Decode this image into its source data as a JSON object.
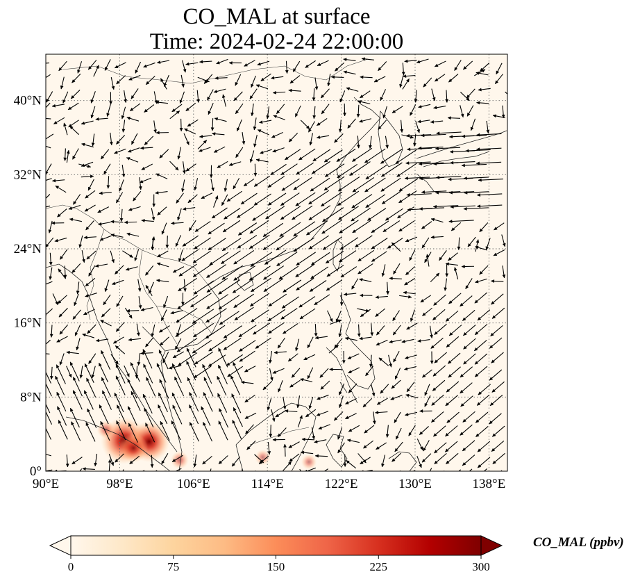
{
  "title_line1": "CO_MAL at surface",
  "title_line2": "Time: 2024-02-24 22:00:00",
  "map": {
    "lon_range": [
      90,
      140
    ],
    "lat_range": [
      0,
      45
    ],
    "lon_ticks": [
      {
        "value": 90,
        "label": "90°E"
      },
      {
        "value": 98,
        "label": "98°E"
      },
      {
        "value": 106,
        "label": "106°E"
      },
      {
        "value": 114,
        "label": "114°E"
      },
      {
        "value": 122,
        "label": "122°E"
      },
      {
        "value": 130,
        "label": "130°E"
      },
      {
        "value": 138,
        "label": "138°E"
      }
    ],
    "lat_ticks": [
      {
        "value": 0,
        "label": "0°"
      },
      {
        "value": 8,
        "label": "8°N"
      },
      {
        "value": 16,
        "label": "16°N"
      },
      {
        "value": 24,
        "label": "24°N"
      },
      {
        "value": 32,
        "label": "32°N"
      },
      {
        "value": 40,
        "label": "40°N"
      }
    ],
    "gridlines": "dotted",
    "background_color": "#fff7ec",
    "hotspots": [
      {
        "lon": 98.5,
        "lat": 3.3,
        "value": 300
      },
      {
        "lon": 101.2,
        "lat": 3.2,
        "value": 250
      },
      {
        "lon": 99.5,
        "lat": 2.5,
        "value": 150
      },
      {
        "lon": 96.5,
        "lat": 4.5,
        "value": 60
      },
      {
        "lon": 104.5,
        "lat": 1.2,
        "value": 60
      },
      {
        "lon": 113.5,
        "lat": 1.5,
        "value": 40
      },
      {
        "lon": 118.5,
        "lat": 1.0,
        "value": 40
      }
    ]
  },
  "colorbar": {
    "label": "CO_MAL (ppbv)",
    "min": 0,
    "max": 300,
    "extend": "both",
    "ticks": [
      {
        "value": 0,
        "label": "0"
      },
      {
        "value": 75,
        "label": "75"
      },
      {
        "value": 150,
        "label": "150"
      },
      {
        "value": 225,
        "label": "225"
      },
      {
        "value": 300,
        "label": "300"
      }
    ],
    "colors": [
      "#fff7ec",
      "#fee8c8",
      "#fdd49e",
      "#fdbb84",
      "#fc8d59",
      "#ef6548",
      "#d7301f",
      "#b30000",
      "#7f0000"
    ]
  }
}
